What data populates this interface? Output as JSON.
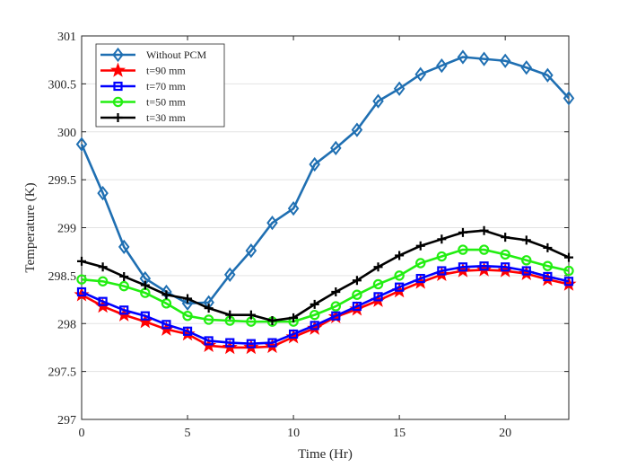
{
  "chart_data": {
    "type": "line",
    "title": "",
    "xlabel": "Time (Hr)",
    "ylabel": "Temperature (K)",
    "xlim": [
      0,
      23
    ],
    "ylim": [
      297,
      301
    ],
    "xticks": [
      0,
      5,
      10,
      15,
      20
    ],
    "xtick_labels": [
      "0",
      "5",
      "10",
      "15",
      "20"
    ],
    "yticks": [
      297,
      297.5,
      298,
      298.5,
      299,
      299.5,
      300,
      300.5,
      301
    ],
    "ytick_labels": [
      "297",
      "297.5",
      "298",
      "298.5",
      "299",
      "299.5",
      "300",
      "300.5",
      "301"
    ],
    "grid": "horizontal",
    "legend_position": "top-left",
    "x": [
      0,
      1,
      2,
      3,
      4,
      5,
      6,
      7,
      8,
      9,
      10,
      11,
      12,
      13,
      14,
      15,
      16,
      17,
      18,
      19,
      20,
      21,
      22,
      23
    ],
    "series": [
      {
        "name": "Without PCM",
        "color": "#1f6fb2",
        "marker": "diamond",
        "values": [
          299.87,
          299.36,
          298.8,
          298.47,
          298.33,
          298.21,
          298.22,
          298.51,
          298.76,
          299.05,
          299.2,
          299.66,
          299.83,
          300.02,
          300.32,
          300.45,
          300.6,
          300.69,
          300.78,
          300.76,
          300.74,
          300.67,
          300.59,
          300.35
        ]
      },
      {
        "name": "t=90 mm",
        "color": "#ff0000",
        "marker": "star",
        "values": [
          298.3,
          298.18,
          298.09,
          298.02,
          297.94,
          297.89,
          297.77,
          297.75,
          297.75,
          297.76,
          297.86,
          297.95,
          298.07,
          298.15,
          298.24,
          298.34,
          298.43,
          298.51,
          298.55,
          298.56,
          298.55,
          298.52,
          298.46,
          298.41
        ]
      },
      {
        "name": "t=70 mm",
        "color": "#0000ff",
        "marker": "square",
        "values": [
          298.33,
          298.23,
          298.14,
          298.08,
          297.99,
          297.92,
          297.82,
          297.8,
          297.79,
          297.8,
          297.89,
          297.98,
          298.08,
          298.18,
          298.28,
          298.38,
          298.47,
          298.55,
          298.59,
          298.6,
          298.59,
          298.55,
          298.49,
          298.44
        ]
      },
      {
        "name": "t=50 mm",
        "color": "#22ee11",
        "marker": "circle",
        "values": [
          298.46,
          298.44,
          298.39,
          298.32,
          298.21,
          298.08,
          298.04,
          298.03,
          298.02,
          298.02,
          298.02,
          298.09,
          298.18,
          298.3,
          298.41,
          298.5,
          298.63,
          298.7,
          298.77,
          298.77,
          298.72,
          298.66,
          298.6,
          298.55
        ]
      },
      {
        "name": "t=30 mm",
        "color": "#000000",
        "marker": "plus",
        "values": [
          298.65,
          298.59,
          298.49,
          298.4,
          298.3,
          298.26,
          298.16,
          298.09,
          298.09,
          298.03,
          298.06,
          298.2,
          298.33,
          298.45,
          298.59,
          298.71,
          298.81,
          298.88,
          298.95,
          298.97,
          298.9,
          298.87,
          298.79,
          298.69
        ]
      }
    ]
  }
}
